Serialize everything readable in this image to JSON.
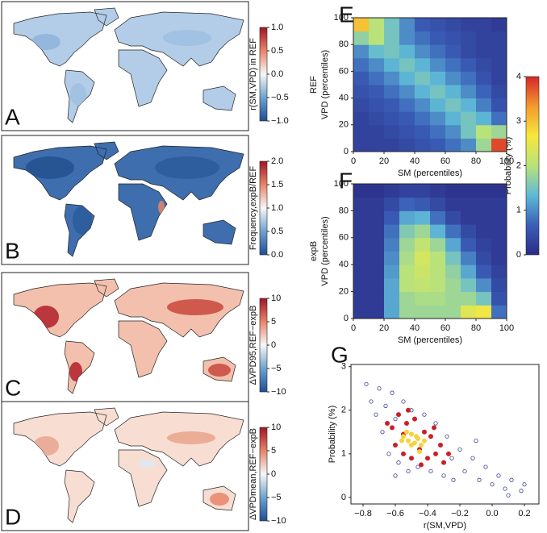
{
  "maps": [
    {
      "letter": "A",
      "colorbar_label": "r(SM,VPD) in REF",
      "clim": [
        -1,
        1
      ],
      "cticks": [
        {
          "value": 1,
          "label": "1.0"
        },
        {
          "value": 0.5,
          "label": "0.5"
        },
        {
          "value": 0,
          "label": "0.0"
        },
        {
          "value": -0.5,
          "label": "−0.5"
        },
        {
          "value": -1,
          "label": "−1.0"
        }
      ]
    },
    {
      "letter": "B",
      "colorbar_label": "Frequency,expB/REF",
      "clim": [
        0,
        2
      ],
      "cticks": [
        {
          "value": 2,
          "label": "2.0"
        },
        {
          "value": 1.5,
          "label": "1.5"
        },
        {
          "value": 1,
          "label": "1.0"
        },
        {
          "value": 0.5,
          "label": "0.5"
        },
        {
          "value": 0,
          "label": "0.0"
        }
      ]
    },
    {
      "letter": "C",
      "colorbar_label": "ΔVPD95,REF−expB",
      "clim": [
        -10,
        10
      ],
      "cticks": [
        10,
        5,
        0,
        {
          "value": -5,
          "label": "−5"
        },
        {
          "value": -10,
          "label": "−10"
        }
      ]
    },
    {
      "letter": "D",
      "colorbar_label": "ΔVPDmean,REF−expB",
      "clim": [
        -10,
        10
      ],
      "cticks": [
        10,
        5,
        0,
        {
          "value": -5,
          "label": "−5"
        },
        {
          "value": -10,
          "label": "−10"
        }
      ]
    }
  ],
  "map_colorscale": [
    "#1f4e96",
    "#6fa2cf",
    "#f7f7f7",
    "#e7856b",
    "#a11425"
  ],
  "colorbar": {
    "label": "Probability (%)",
    "lim": [
      0,
      4
    ],
    "ticks": [
      0,
      1,
      2,
      3,
      4
    ],
    "colorscale": [
      "#2b2c86",
      "#3a5fb8",
      "#5fb9d6",
      "#b9e27a",
      "#f6e83d",
      "#f39a2c",
      "#d6262a"
    ]
  },
  "chart_data": [
    {
      "type": "heatmap",
      "letter": "E",
      "row_label": "REF",
      "xlabel": "SM (percentiles)",
      "ylabel": "VPD (percentiles)",
      "xlim": [
        0,
        100
      ],
      "ylim": [
        0,
        100
      ],
      "xticks": [
        0,
        20,
        40,
        60,
        80,
        100
      ],
      "yticks": [
        0,
        20,
        40,
        60,
        80,
        100
      ],
      "z": [
        [
          0.3,
          0.3,
          0.3,
          0.4,
          0.5,
          0.6,
          0.8,
          1.0,
          1.8,
          3.8
        ],
        [
          0.3,
          0.3,
          0.4,
          0.5,
          0.6,
          0.8,
          1.0,
          1.5,
          2.0,
          1.8
        ],
        [
          0.3,
          0.4,
          0.5,
          0.6,
          0.8,
          1.0,
          1.3,
          1.5,
          1.3,
          0.8
        ],
        [
          0.4,
          0.5,
          0.6,
          0.8,
          1.0,
          1.3,
          1.5,
          1.3,
          0.9,
          0.5
        ],
        [
          0.5,
          0.6,
          0.8,
          1.0,
          1.3,
          1.5,
          1.3,
          1.0,
          0.7,
          0.4
        ],
        [
          0.6,
          0.8,
          1.0,
          1.3,
          1.5,
          1.3,
          1.0,
          0.8,
          0.5,
          0.3
        ],
        [
          0.8,
          1.0,
          1.3,
          1.5,
          1.3,
          1.0,
          0.8,
          0.6,
          0.4,
          0.3
        ],
        [
          1.0,
          1.4,
          1.5,
          1.3,
          1.0,
          0.8,
          0.6,
          0.4,
          0.3,
          0.3
        ],
        [
          1.7,
          2.0,
          1.5,
          1.0,
          0.8,
          0.6,
          0.5,
          0.4,
          0.3,
          0.3
        ],
        [
          3.0,
          2.0,
          1.5,
          1.0,
          0.6,
          0.5,
          0.4,
          0.3,
          0.3,
          0.2
        ]
      ]
    },
    {
      "type": "heatmap",
      "letter": "F",
      "row_label": "expB",
      "xlabel": "SM (percentiles)",
      "ylabel": "VPD (percentiles)",
      "xlim": [
        0,
        100
      ],
      "ylim": [
        0,
        100
      ],
      "xticks": [
        0,
        20,
        40,
        60,
        80,
        100
      ],
      "yticks": [
        0,
        20,
        40,
        60,
        80,
        100
      ],
      "z": [
        [
          0.2,
          0.2,
          1.2,
          1.8,
          1.8,
          1.8,
          1.8,
          2.4,
          2.6,
          0.8
        ],
        [
          0.2,
          0.2,
          1.2,
          1.8,
          1.9,
          1.9,
          1.8,
          1.8,
          1.5,
          0.5
        ],
        [
          0.2,
          0.2,
          1.2,
          2.0,
          2.1,
          2.0,
          1.8,
          1.5,
          1.0,
          0.4
        ],
        [
          0.2,
          0.2,
          1.1,
          2.0,
          2.2,
          2.0,
          1.7,
          1.2,
          0.6,
          0.3
        ],
        [
          0.2,
          0.2,
          1.0,
          1.9,
          2.3,
          2.0,
          1.5,
          0.9,
          0.4,
          0.2
        ],
        [
          0.2,
          0.2,
          0.9,
          1.8,
          2.1,
          1.8,
          1.2,
          0.6,
          0.3,
          0.2
        ],
        [
          0.2,
          0.2,
          0.8,
          1.6,
          1.8,
          1.3,
          0.8,
          0.4,
          0.2,
          0.2
        ],
        [
          0.2,
          0.2,
          0.6,
          1.2,
          1.3,
          0.8,
          0.4,
          0.2,
          0.2,
          0.2
        ],
        [
          0.2,
          0.2,
          0.4,
          0.7,
          0.6,
          0.4,
          0.2,
          0.2,
          0.2,
          0.2
        ],
        [
          0.1,
          0.1,
          0.2,
          0.3,
          0.3,
          0.2,
          0.1,
          0.1,
          0.1,
          0.1
        ]
      ]
    },
    {
      "type": "scatter",
      "letter": "G",
      "xlabel": "r(SM,VPD)",
      "ylabel": "Probability (%)",
      "xlim": [
        -0.875,
        0.29
      ],
      "ylim": [
        -0.15,
        3.05
      ],
      "xticks": [
        {
          "value": -0.8,
          "label": "−0.8"
        },
        {
          "value": -0.6,
          "label": "−0.6"
        },
        {
          "value": -0.4,
          "label": "−0.4"
        },
        {
          "value": -0.2,
          "label": "−0.2"
        },
        {
          "value": 0,
          "label": "0.0"
        },
        0.2
      ],
      "yticks": [
        0,
        1,
        2,
        3
      ],
      "series": [
        {
          "color": "#3b3f8f",
          "hollow": true,
          "x": [
            -0.78,
            -0.75,
            -0.72,
            -0.7,
            -0.68,
            -0.66,
            -0.64,
            -0.62,
            -0.6,
            -0.58,
            -0.55,
            -0.52,
            -0.5,
            -0.46,
            -0.42,
            -0.38,
            -0.35,
            -0.3,
            -0.28,
            -0.24,
            -0.2,
            -0.17,
            -0.12,
            -0.08,
            -0.04,
            0.0,
            0.04,
            0.08,
            0.12,
            0.18,
            0.2,
            -0.1,
            -0.25,
            -0.6,
            0.1
          ],
          "values": [
            2.6,
            2.2,
            1.9,
            2.5,
            1.5,
            2.1,
            1.0,
            2.4,
            1.8,
            0.8,
            2.2,
            0.6,
            2.0,
            0.7,
            1.9,
            0.6,
            1.7,
            0.5,
            1.4,
            0.4,
            1.1,
            0.6,
            0.9,
            0.4,
            0.7,
            0.3,
            0.5,
            0.2,
            0.4,
            0.15,
            0.3,
            1.3,
            0.9,
            0.5,
            0.05
          ]
        },
        {
          "color": "#c8202a",
          "hollow": false,
          "x": [
            -0.62,
            -0.6,
            -0.58,
            -0.55,
            -0.53,
            -0.5,
            -0.48,
            -0.45,
            -0.42,
            -0.4,
            -0.38,
            -0.35,
            -0.32,
            -0.3,
            -0.27,
            -0.55,
            -0.65,
            -0.44,
            -0.36,
            -0.52
          ],
          "values": [
            1.6,
            1.2,
            1.9,
            1.0,
            1.7,
            0.9,
            1.8,
            1.1,
            1.5,
            0.9,
            1.4,
            1.0,
            1.2,
            0.8,
            1.0,
            1.45,
            1.7,
            0.75,
            1.6,
            2.0
          ]
        },
        {
          "color": "#f7d23c",
          "hollow": false,
          "x": [
            -0.55,
            -0.52,
            -0.5,
            -0.48,
            -0.46,
            -0.44,
            -0.5,
            -0.53,
            -0.47,
            -0.42,
            -0.56,
            -0.45
          ],
          "values": [
            1.4,
            1.3,
            1.45,
            1.25,
            1.35,
            1.2,
            1.2,
            1.5,
            1.4,
            1.3,
            1.3,
            1.05
          ]
        }
      ]
    }
  ]
}
